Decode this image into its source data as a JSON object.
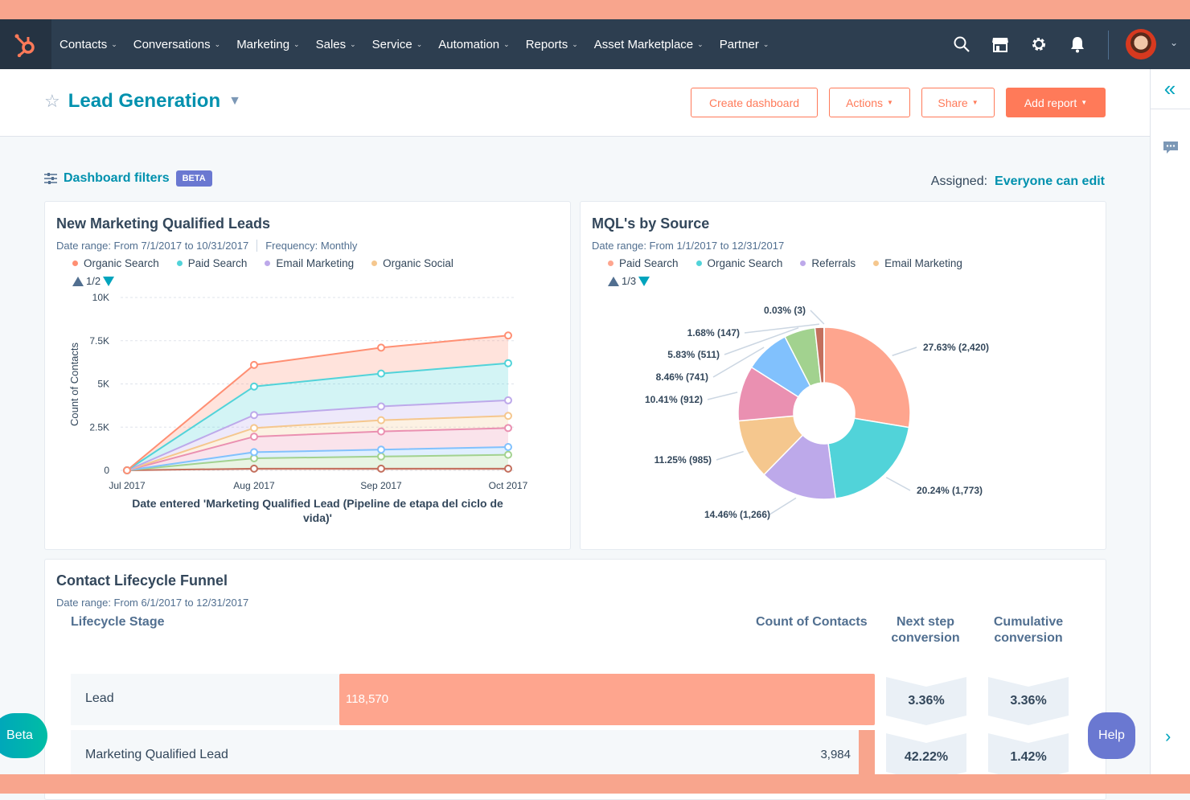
{
  "nav": {
    "items": [
      "Contacts",
      "Conversations",
      "Marketing",
      "Sales",
      "Service",
      "Automation",
      "Reports",
      "Asset Marketplace",
      "Partner"
    ]
  },
  "header": {
    "title": "Lead Generation",
    "create_dashboard": "Create dashboard",
    "actions": "Actions",
    "share": "Share",
    "add_report": "Add report"
  },
  "filters": {
    "label": "Dashboard filters",
    "badge": "BETA",
    "assigned_label": "Assigned:",
    "assigned_value": "Everyone can edit"
  },
  "colors": {
    "accent": "#ff7a59",
    "link": "#0091ae",
    "nav_bg": "#2d3e50"
  },
  "mql_card": {
    "title": "New Marketing Qualified Leads",
    "date_range": "Date range: From 7/1/2017 to 10/31/2017",
    "frequency": "Frequency: Monthly",
    "pager": "1/2"
  },
  "source_card": {
    "title": "MQL's by Source",
    "date_range": "Date range: From 1/1/2017 to 12/31/2017",
    "pager": "1/3"
  },
  "chart_data": [
    {
      "type": "area",
      "stacked": true,
      "categories": [
        "Jul 2017",
        "Aug 2017",
        "Sep 2017",
        "Oct 2017"
      ],
      "ylabel": "Count of Contacts",
      "xlabel": "Date entered 'Marketing Qualified Lead (Pipeline de etapa del ciclo de vida)'",
      "yticks": [
        "0",
        "2.5K",
        "5K",
        "7.5K",
        "10K"
      ],
      "ylim": [
        0,
        10000
      ],
      "grid": true,
      "legend": "top",
      "series": [
        {
          "name": "Organic Search",
          "color": "#ff8f73",
          "values": [
            0,
            1250,
            1500,
            1600
          ]
        },
        {
          "name": "Paid Search",
          "color": "#51d3d9",
          "values": [
            0,
            1650,
            1900,
            2150
          ]
        },
        {
          "name": "Email Marketing",
          "color": "#bda9ea",
          "values": [
            0,
            750,
            800,
            900
          ]
        },
        {
          "name": "Organic Social",
          "color": "#f5c78e",
          "values": [
            0,
            500,
            650,
            700
          ]
        },
        {
          "color": "#ea90b1",
          "values": [
            0,
            900,
            1050,
            1100
          ]
        },
        {
          "color": "#81c1fd",
          "values": [
            0,
            350,
            400,
            450
          ]
        },
        {
          "color": "#a2d28f",
          "values": [
            0,
            600,
            700,
            800
          ]
        },
        {
          "color": "#c36f5d",
          "values": [
            0,
            100,
            100,
            100
          ]
        }
      ]
    },
    {
      "type": "pie",
      "donut": true,
      "legend": "top",
      "legend_entries": [
        {
          "name": "Paid Search",
          "color": "#fea58e"
        },
        {
          "name": "Organic Search",
          "color": "#51d3d9"
        },
        {
          "name": "Referrals",
          "color": "#bda9ea"
        },
        {
          "name": "Email Marketing",
          "color": "#f5c78e"
        }
      ],
      "slices": [
        {
          "label": "27.63% (2,420)",
          "value": 2420,
          "color": "#fea58e"
        },
        {
          "label": "20.24% (1,773)",
          "value": 1773,
          "color": "#51d3d9"
        },
        {
          "label": "14.46% (1,266)",
          "value": 1266,
          "color": "#bda9ea"
        },
        {
          "label": "11.25% (985)",
          "value": 985,
          "color": "#f5c78e"
        },
        {
          "label": "10.41% (912)",
          "value": 912,
          "color": "#ea90b1"
        },
        {
          "label": "8.46% (741)",
          "value": 741,
          "color": "#81c1fd"
        },
        {
          "label": "5.83% (511)",
          "value": 511,
          "color": "#a2d28f"
        },
        {
          "label": "1.68% (147)",
          "value": 147,
          "color": "#c36f5d"
        },
        {
          "label": "0.03% (3)",
          "value": 3,
          "color": "#6a78d1"
        }
      ]
    }
  ],
  "funnel": {
    "title": "Contact Lifecycle Funnel",
    "date_range": "Date range: From 6/1/2017 to 12/31/2017",
    "headers": {
      "stage": "Lifecycle Stage",
      "count": "Count of Contacts",
      "next": "Next step conversion",
      "cumulative": "Cumulative conversion"
    },
    "rows": [
      {
        "stage": "Lead",
        "count": "118,570",
        "count_value": 118570,
        "next": "3.36%",
        "cumulative": "3.36%"
      },
      {
        "stage": "Marketing Qualified Lead",
        "count": "3,984",
        "count_value": 3984,
        "next": "42.22%",
        "cumulative": "1.42%"
      }
    ]
  },
  "floating": {
    "beta": "Beta",
    "help": "Help"
  }
}
